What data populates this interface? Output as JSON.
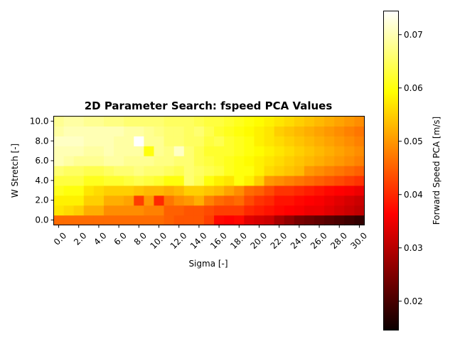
{
  "chart_data": {
    "type": "heatmap",
    "title": "2D Parameter Search: fspeed PCA Values",
    "xlabel": "Sigma [-]",
    "ylabel": "W Stretch [-]",
    "colorbar_label": "Forward Speed PCA [m/s]",
    "colormap": "hot",
    "vmin": 0.0145,
    "vmax": 0.0745,
    "x_tick_labels": [
      "0.0",
      "2.0",
      "4.0",
      "6.0",
      "8.0",
      "10.0",
      "12.0",
      "14.0",
      "16.0",
      "18.0",
      "20.0",
      "22.0",
      "24.0",
      "26.0",
      "28.0",
      "30.0"
    ],
    "y_tick_labels": [
      "0.0",
      "2.0",
      "4.0",
      "6.0",
      "8.0",
      "10.0"
    ],
    "colorbar_ticks": [
      "0.02",
      "0.03",
      "0.04",
      "0.05",
      "0.06",
      "0.07"
    ],
    "x": [
      0,
      1,
      2,
      3,
      4,
      5,
      6,
      7,
      8,
      9,
      10,
      11,
      12,
      13,
      14,
      15,
      16,
      17,
      18,
      19,
      20,
      21,
      22,
      23,
      24,
      25,
      26,
      27,
      28,
      29,
      30
    ],
    "y": [
      0,
      1,
      2,
      3,
      4,
      5,
      6,
      7,
      8,
      9,
      10
    ],
    "values": [
      [
        0.046,
        0.046,
        0.046,
        0.046,
        0.046,
        0.046,
        0.046,
        0.046,
        0.046,
        0.046,
        0.046,
        0.045,
        0.044,
        0.044,
        0.044,
        0.042,
        0.037,
        0.036,
        0.037,
        0.033,
        0.032,
        0.031,
        0.028,
        0.026,
        0.024,
        0.023,
        0.022,
        0.021,
        0.02,
        0.019,
        0.018
      ],
      [
        0.057,
        0.056,
        0.055,
        0.052,
        0.052,
        0.049,
        0.049,
        0.049,
        0.049,
        0.048,
        0.048,
        0.045,
        0.045,
        0.044,
        0.044,
        0.043,
        0.042,
        0.042,
        0.042,
        0.04,
        0.039,
        0.038,
        0.037,
        0.036,
        0.035,
        0.034,
        0.034,
        0.033,
        0.032,
        0.031,
        0.03
      ],
      [
        0.058,
        0.058,
        0.058,
        0.055,
        0.055,
        0.052,
        0.052,
        0.051,
        0.042,
        0.05,
        0.04,
        0.047,
        0.049,
        0.05,
        0.052,
        0.048,
        0.046,
        0.045,
        0.046,
        0.043,
        0.041,
        0.04,
        0.038,
        0.038,
        0.037,
        0.036,
        0.035,
        0.034,
        0.033,
        0.032,
        0.031
      ],
      [
        0.061,
        0.06,
        0.06,
        0.057,
        0.056,
        0.055,
        0.055,
        0.055,
        0.054,
        0.053,
        0.053,
        0.052,
        0.053,
        0.055,
        0.055,
        0.054,
        0.053,
        0.051,
        0.049,
        0.046,
        0.045,
        0.043,
        0.041,
        0.041,
        0.04,
        0.039,
        0.038,
        0.037,
        0.036,
        0.035,
        0.034
      ],
      [
        0.063,
        0.063,
        0.063,
        0.061,
        0.061,
        0.062,
        0.062,
        0.063,
        0.064,
        0.063,
        0.062,
        0.06,
        0.06,
        0.066,
        0.064,
        0.06,
        0.058,
        0.057,
        0.06,
        0.058,
        0.055,
        0.05,
        0.049,
        0.048,
        0.047,
        0.046,
        0.045,
        0.044,
        0.043,
        0.042,
        0.041
      ],
      [
        0.066,
        0.065,
        0.065,
        0.064,
        0.064,
        0.065,
        0.066,
        0.066,
        0.067,
        0.066,
        0.066,
        0.065,
        0.064,
        0.066,
        0.065,
        0.064,
        0.063,
        0.061,
        0.06,
        0.06,
        0.058,
        0.056,
        0.055,
        0.054,
        0.053,
        0.05,
        0.049,
        0.048,
        0.047,
        0.046,
        0.045
      ],
      [
        0.07,
        0.069,
        0.068,
        0.068,
        0.068,
        0.069,
        0.069,
        0.068,
        0.068,
        0.068,
        0.067,
        0.067,
        0.066,
        0.066,
        0.064,
        0.063,
        0.062,
        0.061,
        0.06,
        0.059,
        0.058,
        0.057,
        0.056,
        0.055,
        0.054,
        0.053,
        0.052,
        0.051,
        0.05,
        0.049,
        0.048
      ],
      [
        0.07,
        0.07,
        0.07,
        0.069,
        0.069,
        0.07,
        0.069,
        0.069,
        0.069,
        0.06,
        0.068,
        0.067,
        0.071,
        0.066,
        0.064,
        0.062,
        0.062,
        0.062,
        0.061,
        0.06,
        0.059,
        0.058,
        0.057,
        0.056,
        0.055,
        0.054,
        0.053,
        0.052,
        0.051,
        0.05,
        0.049
      ],
      [
        0.071,
        0.071,
        0.071,
        0.07,
        0.07,
        0.07,
        0.069,
        0.069,
        0.075,
        0.068,
        0.068,
        0.066,
        0.066,
        0.065,
        0.065,
        0.063,
        0.064,
        0.062,
        0.061,
        0.06,
        0.058,
        0.057,
        0.056,
        0.055,
        0.054,
        0.053,
        0.052,
        0.051,
        0.05,
        0.049,
        0.048
      ],
      [
        0.069,
        0.07,
        0.07,
        0.07,
        0.07,
        0.07,
        0.07,
        0.069,
        0.069,
        0.068,
        0.067,
        0.066,
        0.066,
        0.065,
        0.066,
        0.064,
        0.062,
        0.061,
        0.06,
        0.059,
        0.058,
        0.057,
        0.055,
        0.054,
        0.053,
        0.052,
        0.051,
        0.05,
        0.049,
        0.048,
        0.047
      ],
      [
        0.068,
        0.069,
        0.069,
        0.068,
        0.068,
        0.067,
        0.067,
        0.066,
        0.066,
        0.066,
        0.066,
        0.065,
        0.065,
        0.065,
        0.064,
        0.063,
        0.063,
        0.062,
        0.061,
        0.06,
        0.059,
        0.058,
        0.057,
        0.056,
        0.055,
        0.054,
        0.053,
        0.052,
        0.051,
        0.05,
        0.049
      ]
    ]
  }
}
